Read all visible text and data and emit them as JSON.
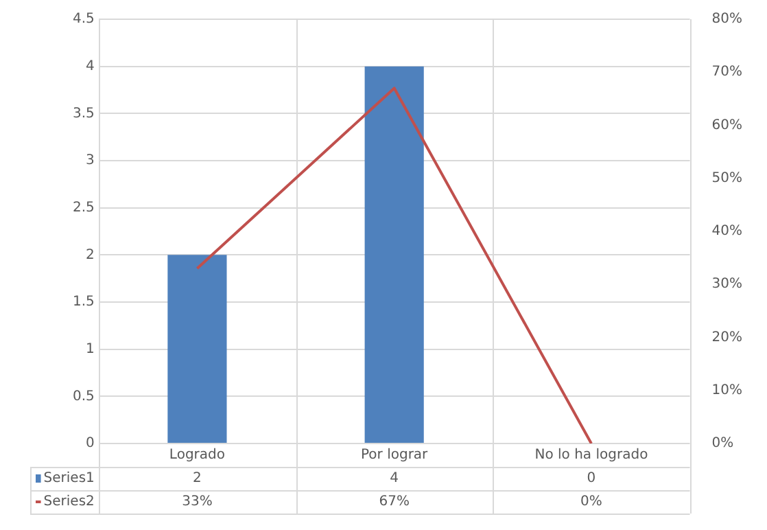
{
  "chart_data": {
    "type": "bar",
    "categories": [
      "Logrado",
      "Por lograr",
      "No lo ha logrado"
    ],
    "series": [
      {
        "name": "Series1",
        "color": "#4f81bd",
        "values": [
          2,
          4,
          0
        ],
        "value_labels": [
          "2",
          "4",
          "0"
        ]
      },
      {
        "name": "Series2",
        "type": "line",
        "axis": "y2",
        "color": "#c0504d",
        "values": [
          33,
          67,
          0
        ],
        "value_labels": [
          "33%",
          "67%",
          "0%"
        ]
      }
    ],
    "ylim": [
      0,
      4.5
    ],
    "yticks": [
      0,
      0.5,
      1,
      1.5,
      2,
      2.5,
      3,
      3.5,
      4,
      4.5
    ],
    "y2lim": [
      0,
      80
    ],
    "y2ticks": [
      {
        "value": 0,
        "label": "0%"
      },
      {
        "value": 10,
        "label": "10%"
      },
      {
        "value": 20,
        "label": "20%"
      },
      {
        "value": 30,
        "label": "30%"
      },
      {
        "value": 40,
        "label": "40%"
      },
      {
        "value": 50,
        "label": "50%"
      },
      {
        "value": 60,
        "label": "60%"
      },
      {
        "value": 70,
        "label": "70%"
      },
      {
        "value": 80,
        "label": "80%"
      }
    ],
    "grid": true,
    "legend": "bottom",
    "marker": "none",
    "line_style": "solid"
  }
}
